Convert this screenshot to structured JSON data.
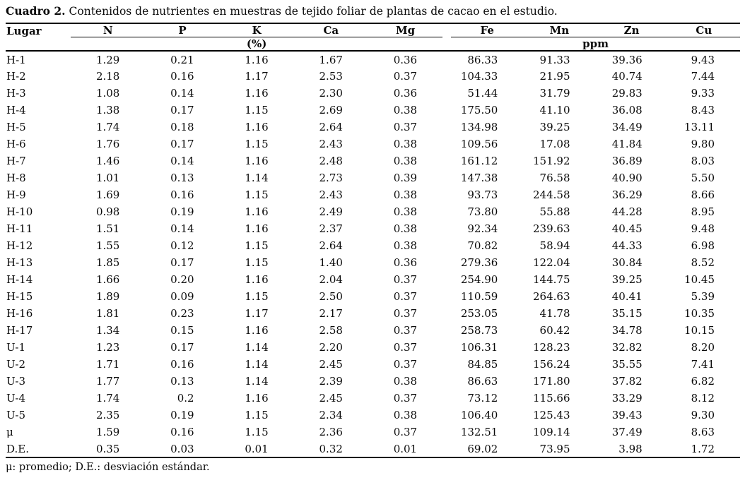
{
  "page": {
    "title_label": "Cuadro 2.",
    "title_text": "Contenidos de nutrientes en muestras de tejido foliar de plantas de cacao en el estudio.",
    "footnote": "μ: promedio; D.E.: desviación estándar."
  },
  "table": {
    "row_header": "Lugar",
    "groups": [
      {
        "unit": "(%)",
        "columns": [
          "N",
          "P",
          "K",
          "Ca",
          "Mg"
        ]
      },
      {
        "unit": "ppm",
        "columns": [
          "Fe",
          "Mn",
          "Zn",
          "Cu"
        ]
      }
    ],
    "rows": [
      {
        "lugar": "H-1",
        "values": [
          "1.29",
          "0.21",
          "1.16",
          "1.67",
          "0.36",
          "86.33",
          "91.33",
          "39.36",
          "9.43"
        ]
      },
      {
        "lugar": "H-2",
        "values": [
          "2.18",
          "0.16",
          "1.17",
          "2.53",
          "0.37",
          "104.33",
          "21.95",
          "40.74",
          "7.44"
        ]
      },
      {
        "lugar": "H-3",
        "values": [
          "1.08",
          "0.14",
          "1.16",
          "2.30",
          "0.36",
          "51.44",
          "31.79",
          "29.83",
          "9.33"
        ]
      },
      {
        "lugar": "H-4",
        "values": [
          "1.38",
          "0.17",
          "1.15",
          "2.69",
          "0.38",
          "175.50",
          "41.10",
          "36.08",
          "8.43"
        ]
      },
      {
        "lugar": "H-5",
        "values": [
          "1.74",
          "0.18",
          "1.16",
          "2.64",
          "0.37",
          "134.98",
          "39.25",
          "34.49",
          "13.11"
        ]
      },
      {
        "lugar": "H-6",
        "values": [
          "1.76",
          "0.17",
          "1.15",
          "2.43",
          "0.38",
          "109.56",
          "17.08",
          "41.84",
          "9.80"
        ]
      },
      {
        "lugar": "H-7",
        "values": [
          "1.46",
          "0.14",
          "1.16",
          "2.48",
          "0.38",
          "161.12",
          "151.92",
          "36.89",
          "8.03"
        ]
      },
      {
        "lugar": "H-8",
        "values": [
          "1.01",
          "0.13",
          "1.14",
          "2.73",
          "0.39",
          "147.38",
          "76.58",
          "40.90",
          "5.50"
        ]
      },
      {
        "lugar": "H-9",
        "values": [
          "1.69",
          "0.16",
          "1.15",
          "2.43",
          "0.38",
          "93.73",
          "244.58",
          "36.29",
          "8.66"
        ]
      },
      {
        "lugar": "H-10",
        "values": [
          "0.98",
          "0.19",
          "1.16",
          "2.49",
          "0.38",
          "73.80",
          "55.88",
          "44.28",
          "8.95"
        ]
      },
      {
        "lugar": "H-11",
        "values": [
          "1.51",
          "0.14",
          "1.16",
          "2.37",
          "0.38",
          "92.34",
          "239.63",
          "40.45",
          "9.48"
        ]
      },
      {
        "lugar": "H-12",
        "values": [
          "1.55",
          "0.12",
          "1.15",
          "2.64",
          "0.38",
          "70.82",
          "58.94",
          "44.33",
          "6.98"
        ]
      },
      {
        "lugar": "H-13",
        "values": [
          "1.85",
          "0.17",
          "1.15",
          "1.40",
          "0.36",
          "279.36",
          "122.04",
          "30.84",
          "8.52"
        ]
      },
      {
        "lugar": "H-14",
        "values": [
          "1.66",
          "0.20",
          "1.16",
          "2.04",
          "0.37",
          "254.90",
          "144.75",
          "39.25",
          "10.45"
        ]
      },
      {
        "lugar": "H-15",
        "values": [
          "1.89",
          "0.09",
          "1.15",
          "2.50",
          "0.37",
          "110.59",
          "264.63",
          "40.41",
          "5.39"
        ]
      },
      {
        "lugar": "H-16",
        "values": [
          "1.81",
          "0.23",
          "1.17",
          "2.17",
          "0.37",
          "253.05",
          "41.78",
          "35.15",
          "10.35"
        ]
      },
      {
        "lugar": "H-17",
        "values": [
          "1.34",
          "0.15",
          "1.16",
          "2.58",
          "0.37",
          "258.73",
          "60.42",
          "34.78",
          "10.15"
        ]
      },
      {
        "lugar": "U-1",
        "values": [
          "1.23",
          "0.17",
          "1.14",
          "2.20",
          "0.37",
          "106.31",
          "128.23",
          "32.82",
          "8.20"
        ]
      },
      {
        "lugar": "U-2",
        "values": [
          "1.71",
          "0.16",
          "1.14",
          "2.45",
          "0.37",
          "84.85",
          "156.24",
          "35.55",
          "7.41"
        ]
      },
      {
        "lugar": "U-3",
        "values": [
          "1.77",
          "0.13",
          "1.14",
          "2.39",
          "0.38",
          "86.63",
          "171.80",
          "37.82",
          "6.82"
        ]
      },
      {
        "lugar": "U-4",
        "values": [
          "1.74",
          "0.2",
          "1.16",
          "2.45",
          "0.37",
          "73.12",
          "115.66",
          "33.29",
          "8.12"
        ]
      },
      {
        "lugar": "U-5",
        "values": [
          "2.35",
          "0.19",
          "1.15",
          "2.34",
          "0.38",
          "106.40",
          "125.43",
          "39.43",
          "9.30"
        ]
      },
      {
        "lugar": "μ",
        "values": [
          "1.59",
          "0.16",
          "1.15",
          "2.36",
          "0.37",
          "132.51",
          "109.14",
          "37.49",
          "8.63"
        ]
      },
      {
        "lugar": "D.E.",
        "values": [
          "0.35",
          "0.03",
          "0.01",
          "0.32",
          "0.01",
          "69.02",
          "73.95",
          "3.98",
          "1.72"
        ]
      }
    ]
  }
}
